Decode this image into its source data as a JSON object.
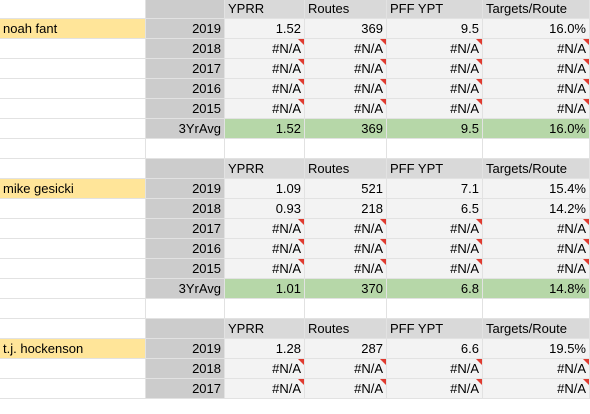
{
  "headers": [
    "YPRR",
    "Routes",
    "PFF YPT",
    "Targets/Route"
  ],
  "players": [
    {
      "name": "noah fant",
      "rows": [
        {
          "year": "2019",
          "vals": [
            "1.52",
            "369",
            "9.5",
            "16.0%"
          ],
          "err": [
            false,
            false,
            false,
            false
          ]
        },
        {
          "year": "2018",
          "vals": [
            "#N/A",
            "#N/A",
            "#N/A",
            "#N/A"
          ],
          "err": [
            true,
            true,
            true,
            true
          ]
        },
        {
          "year": "2017",
          "vals": [
            "#N/A",
            "#N/A",
            "#N/A",
            "#N/A"
          ],
          "err": [
            true,
            true,
            true,
            true
          ]
        },
        {
          "year": "2016",
          "vals": [
            "#N/A",
            "#N/A",
            "#N/A",
            "#N/A"
          ],
          "err": [
            true,
            true,
            true,
            true
          ]
        },
        {
          "year": "2015",
          "vals": [
            "#N/A",
            "#N/A",
            "#N/A",
            "#N/A"
          ],
          "err": [
            true,
            true,
            true,
            true
          ]
        }
      ],
      "avg": {
        "label": "3YrAvg",
        "vals": [
          "1.52",
          "369",
          "9.5",
          "16.0%"
        ]
      }
    },
    {
      "name": "mike gesicki",
      "rows": [
        {
          "year": "2019",
          "vals": [
            "1.09",
            "521",
            "7.1",
            "15.4%"
          ],
          "err": [
            false,
            false,
            false,
            false
          ]
        },
        {
          "year": "2018",
          "vals": [
            "0.93",
            "218",
            "6.5",
            "14.2%"
          ],
          "err": [
            false,
            false,
            false,
            false
          ]
        },
        {
          "year": "2017",
          "vals": [
            "#N/A",
            "#N/A",
            "#N/A",
            "#N/A"
          ],
          "err": [
            true,
            true,
            true,
            true
          ]
        },
        {
          "year": "2016",
          "vals": [
            "#N/A",
            "#N/A",
            "#N/A",
            "#N/A"
          ],
          "err": [
            true,
            true,
            true,
            true
          ]
        },
        {
          "year": "2015",
          "vals": [
            "#N/A",
            "#N/A",
            "#N/A",
            "#N/A"
          ],
          "err": [
            true,
            true,
            true,
            true
          ]
        }
      ],
      "avg": {
        "label": "3YrAvg",
        "vals": [
          "1.01",
          "370",
          "6.8",
          "14.8%"
        ]
      }
    },
    {
      "name": "t.j. hockenson",
      "rows": [
        {
          "year": "2019",
          "vals": [
            "1.28",
            "287",
            "6.6",
            "19.5%"
          ],
          "err": [
            false,
            false,
            false,
            false
          ]
        },
        {
          "year": "2018",
          "vals": [
            "#N/A",
            "#N/A",
            "#N/A",
            "#N/A"
          ],
          "err": [
            true,
            true,
            true,
            true
          ]
        },
        {
          "year": "2017",
          "vals": [
            "#N/A",
            "#N/A",
            "#N/A",
            "#N/A"
          ],
          "err": [
            true,
            true,
            true,
            true
          ]
        }
      ]
    }
  ],
  "colors": {
    "name_highlight": "#ffe599",
    "avg_highlight": "#b6d7a8",
    "error_marker": "#e03a2f",
    "header_bg": "#d9d9d9"
  }
}
